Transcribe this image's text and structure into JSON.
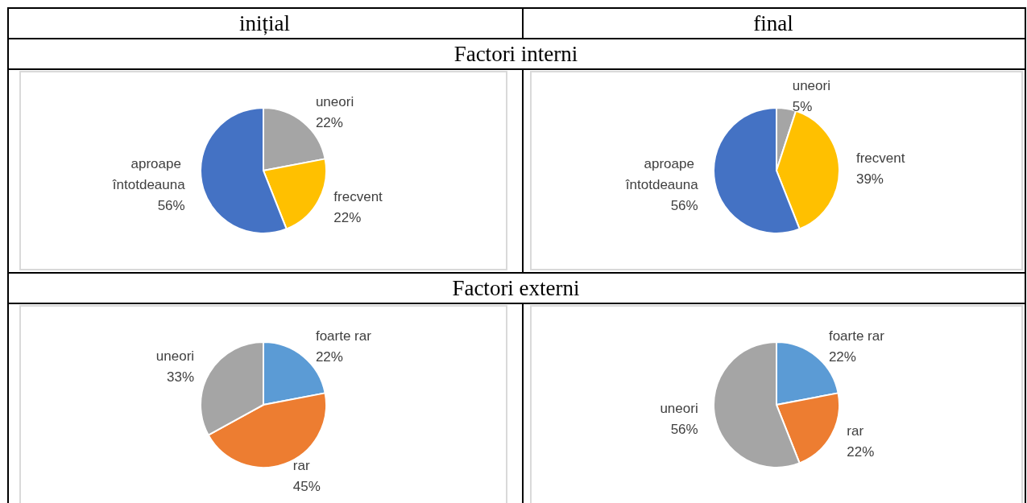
{
  "chart_data": [
    {
      "type": "pie",
      "title": "Factori interni",
      "annotations": [
        "inițial"
      ],
      "categories": [
        "uneori",
        "frecvent",
        "aproape întotdeauna"
      ],
      "values": [
        22,
        22,
        56
      ],
      "value_labels": [
        "22%",
        "22%",
        "56%"
      ],
      "colors": [
        "#a5a5a5",
        "#ffc000",
        "#4472c4"
      ]
    },
    {
      "type": "pie",
      "annotations": [
        "final"
      ],
      "categories": [
        "uneori",
        "frecvent",
        "aproape întotdeauna"
      ],
      "values": [
        5,
        39,
        56
      ],
      "value_labels": [
        "5%",
        "39%",
        "56%"
      ],
      "colors": [
        "#a5a5a5",
        "#ffc000",
        "#4472c4"
      ]
    },
    {
      "type": "pie",
      "title": "Factori externi",
      "categories": [
        "foarte rar",
        "rar",
        "uneori"
      ],
      "values": [
        22,
        45,
        33
      ],
      "value_labels": [
        "22%",
        "45%",
        "33%"
      ],
      "colors": [
        "#5b9bd5",
        "#ed7d31",
        "#a5a5a5"
      ]
    },
    {
      "type": "pie",
      "categories": [
        "foarte rar",
        "rar",
        "uneori"
      ],
      "values": [
        22,
        22,
        56
      ],
      "value_labels": [
        "22%",
        "22%",
        "56%"
      ],
      "colors": [
        "#5b9bd5",
        "#ed7d31",
        "#a5a5a5"
      ]
    }
  ]
}
